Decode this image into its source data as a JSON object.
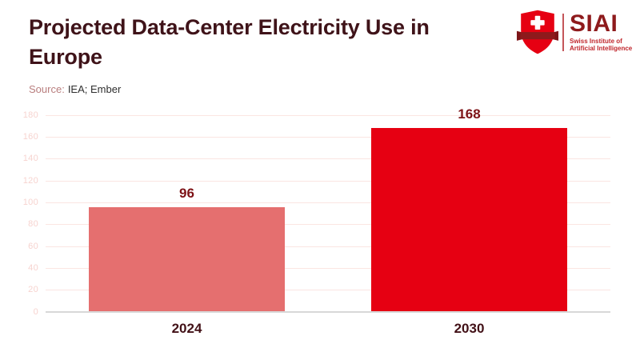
{
  "header": {
    "title_line1": "Projected Data-Center Electricity Use in",
    "title_line2": "Europe",
    "source_label": "Source:",
    "source_value": "IEA; Ember"
  },
  "logo": {
    "shield_icon": "swiss-shield-icon",
    "acronym": "SIAI",
    "subtitle_line1": "Swiss Institute of",
    "subtitle_line2": "Artificial Intelligence"
  },
  "chart_data": {
    "type": "bar",
    "title": "Projected Data-Center Electricity Use in Europe",
    "source": "IEA; Ember",
    "categories": [
      "2024",
      "2030"
    ],
    "values": [
      96,
      168
    ],
    "xlabel": "",
    "ylabel": "",
    "ylim": [
      0,
      180
    ],
    "yticks": [
      0,
      20,
      40,
      60,
      80,
      100,
      120,
      140,
      160,
      180
    ],
    "grid": true,
    "legend": false,
    "bar_colors": [
      "#e56f6f",
      "#e60012"
    ],
    "value_labels": [
      "96",
      "168"
    ]
  },
  "colors": {
    "title_text": "#3f1319",
    "value_label_text": "#7d1216",
    "x_label_text": "#421117",
    "source_label_text": "#b97e7e",
    "source_value_text": "#2f2f2f",
    "grid_line": "#fbe5e2",
    "y_tick_text": "#f7d3cf",
    "axis_line": "#d8d8d8",
    "bar_2024": "#e56f6f",
    "bar_2030": "#e60012",
    "logo_shield_red": "#e60012",
    "logo_banner_dark_red": "#8e1a1c",
    "logo_subtitle_red": "#c0272d"
  }
}
